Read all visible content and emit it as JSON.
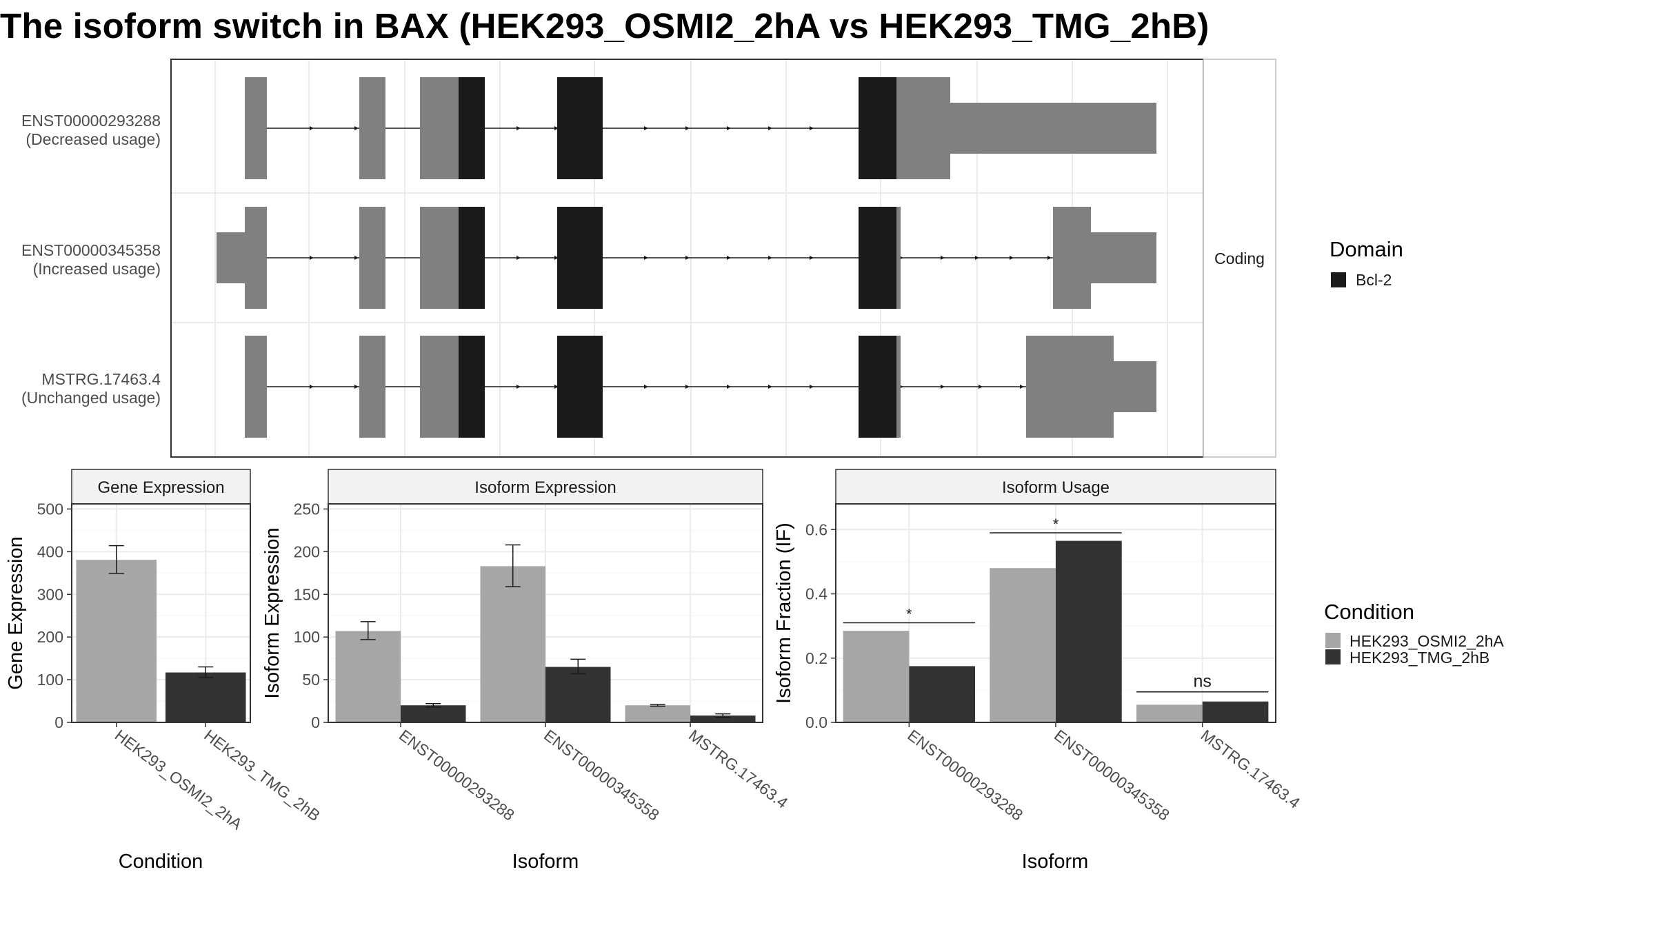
{
  "title": "The isoform switch in BAX (HEK293_OSMI2_2hA vs HEK293_TMG_2hB)",
  "colors": {
    "exon_noncoding": "#808080",
    "domain_bcl2": "#1a1a1a",
    "condition_a": "#a6a6a6",
    "condition_b": "#333333",
    "grid": "#ebebeb",
    "strip_fill": "#f2f2f2"
  },
  "transcript_panel": {
    "strip_label": "Coding",
    "transcripts": [
      {
        "id": "ENST00000293288",
        "usage": "(Decreased usage)"
      },
      {
        "id": "ENST00000345358",
        "usage": "(Increased usage)"
      },
      {
        "id": "MSTRG.17463.4",
        "usage": "(Unchanged usage)"
      }
    ],
    "legend": {
      "title": "Domain",
      "items": [
        {
          "label": "Bcl-2",
          "color": "#1a1a1a"
        }
      ]
    }
  },
  "chart_data": [
    {
      "type": "bar",
      "title": "Gene Expression",
      "xlabel": "Condition",
      "ylabel": "Gene Expression",
      "categories": [
        "HEK293_OSMI2_2hA",
        "HEK293_TMG_2hB"
      ],
      "values": [
        381,
        117
      ],
      "error_low": [
        349,
        105
      ],
      "error_high": [
        414,
        130
      ],
      "colors": [
        "#a6a6a6",
        "#333333"
      ],
      "ylim": [
        0,
        512
      ],
      "yticks": [
        0,
        100,
        200,
        300,
        400,
        500
      ]
    },
    {
      "type": "bar",
      "title": "Isoform Expression",
      "xlabel": "Isoform",
      "ylabel": "Isoform Expression",
      "categories": [
        "ENST00000293288",
        "ENST00000345358",
        "MSTRG.17463.4"
      ],
      "series": [
        {
          "name": "HEK293_OSMI2_2hA",
          "values": [
            107,
            183,
            20
          ],
          "error_low": [
            97,
            159,
            19
          ],
          "error_high": [
            118,
            208,
            21
          ]
        },
        {
          "name": "HEK293_TMG_2hB",
          "values": [
            20,
            65,
            8
          ],
          "error_low": [
            18,
            57,
            6
          ],
          "error_high": [
            22,
            74,
            10
          ]
        }
      ],
      "ylim": [
        0,
        256
      ],
      "yticks": [
        0,
        50,
        100,
        150,
        200,
        250
      ]
    },
    {
      "type": "bar",
      "title": "Isoform Usage",
      "xlabel": "Isoform",
      "ylabel": "Isoform Fraction (IF)",
      "categories": [
        "ENST00000293288",
        "ENST00000345358",
        "MSTRG.17463.4"
      ],
      "series": [
        {
          "name": "HEK293_OSMI2_2hA",
          "values": [
            0.285,
            0.48,
            0.055
          ]
        },
        {
          "name": "HEK293_TMG_2hB",
          "values": [
            0.175,
            0.565,
            0.065
          ]
        }
      ],
      "significance": [
        "*",
        "*",
        "ns"
      ],
      "significance_y": [
        0.31,
        0.59,
        0.095
      ],
      "ylim": [
        0,
        0.68
      ],
      "yticks": [
        0.0,
        0.2,
        0.4,
        0.6
      ]
    }
  ],
  "condition_legend": {
    "title": "Condition",
    "items": [
      {
        "label": "HEK293_OSMI2_2hA",
        "color": "#a6a6a6"
      },
      {
        "label": "HEK293_TMG_2hB",
        "color": "#333333"
      }
    ]
  }
}
